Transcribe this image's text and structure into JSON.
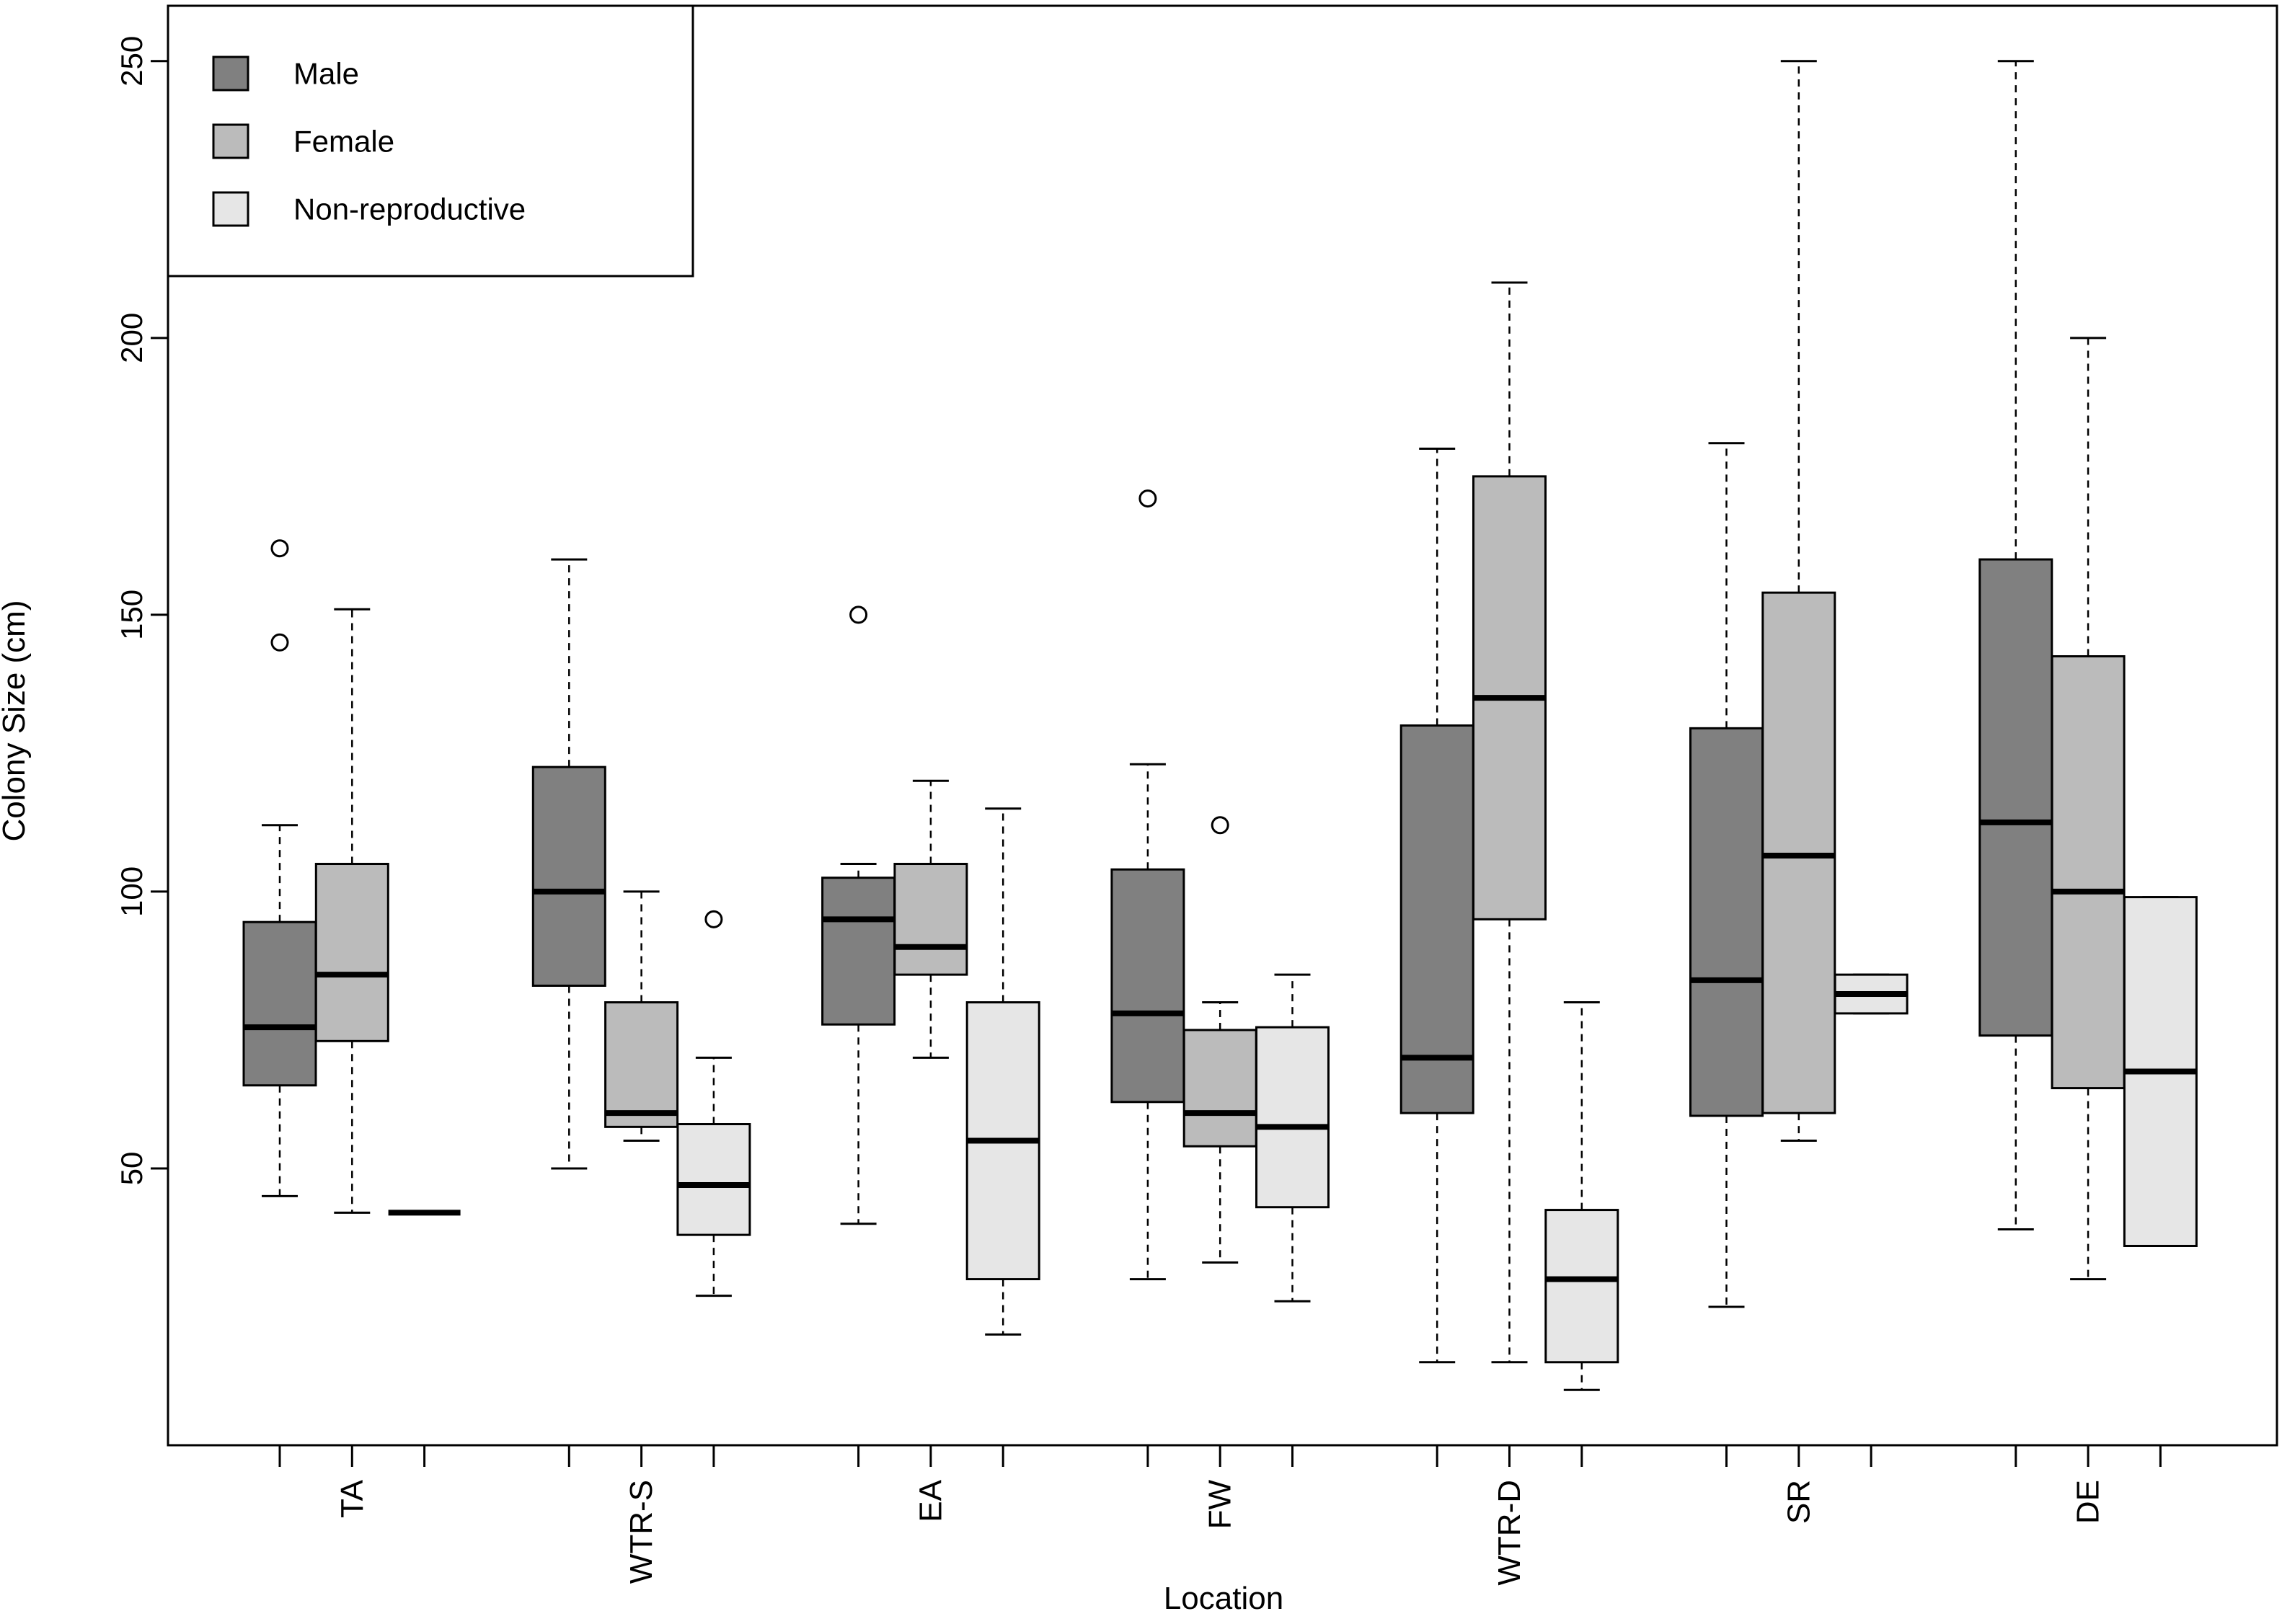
{
  "chart_data": {
    "type": "boxplot",
    "title": "",
    "xlabel": "Location",
    "ylabel": "Colony Size (cm)",
    "ylim": [
      0,
      260
    ],
    "yticks": [
      50,
      100,
      150,
      200,
      250
    ],
    "grid": false,
    "legend_position": "top-left",
    "categories": [
      "TA",
      "WTR-S",
      "EA",
      "FW",
      "WTR-D",
      "SR",
      "DE"
    ],
    "series": [
      {
        "name": "Male",
        "color": "#808080",
        "boxes": [
          {
            "whisker_low": 45,
            "q1": 65,
            "median": 75.5,
            "q3": 94.5,
            "whisker_high": 112,
            "outliers": [
              145,
              162
            ]
          },
          {
            "whisker_low": 50,
            "q1": 83,
            "median": 100,
            "q3": 122.5,
            "whisker_high": 160,
            "outliers": []
          },
          {
            "whisker_low": 40,
            "q1": 76,
            "median": 95,
            "q3": 102.5,
            "whisker_high": 105,
            "outliers": [
              150
            ]
          },
          {
            "whisker_low": 30,
            "q1": 62,
            "median": 78,
            "q3": 104,
            "whisker_high": 123,
            "outliers": [
              171
            ]
          },
          {
            "whisker_low": 15,
            "q1": 60,
            "median": 70,
            "q3": 130,
            "whisker_high": 180,
            "outliers": []
          },
          {
            "whisker_low": 25,
            "q1": 59.5,
            "median": 84,
            "q3": 129.5,
            "whisker_high": 181,
            "outliers": []
          },
          {
            "whisker_low": 39,
            "q1": 74,
            "median": 112.5,
            "q3": 160,
            "whisker_high": 250,
            "outliers": []
          }
        ]
      },
      {
        "name": "Female",
        "color": "#bbbbbb",
        "boxes": [
          {
            "whisker_low": 42,
            "q1": 73,
            "median": 85,
            "q3": 105,
            "whisker_high": 151,
            "outliers": []
          },
          {
            "whisker_low": 55,
            "q1": 57.5,
            "median": 60,
            "q3": 80,
            "whisker_high": 100,
            "outliers": []
          },
          {
            "whisker_low": 70,
            "q1": 85,
            "median": 90,
            "q3": 105,
            "whisker_high": 120,
            "outliers": []
          },
          {
            "whisker_low": 33,
            "q1": 54,
            "median": 60,
            "q3": 75,
            "whisker_high": 80,
            "outliers": [
              112
            ]
          },
          {
            "whisker_low": 15,
            "q1": 95,
            "median": 135,
            "q3": 175,
            "whisker_high": 210,
            "outliers": []
          },
          {
            "whisker_low": 55,
            "q1": 60,
            "median": 106.5,
            "q3": 154,
            "whisker_high": 250,
            "outliers": []
          },
          {
            "whisker_low": 30,
            "q1": 64.5,
            "median": 100,
            "q3": 142.5,
            "whisker_high": 200,
            "outliers": []
          }
        ]
      },
      {
        "name": "Non-reproductive",
        "color": "#e6e6e6",
        "boxes": [
          {
            "whisker_low": 42,
            "q1": 42,
            "median": 42,
            "q3": 42,
            "whisker_high": 42,
            "outliers": []
          },
          {
            "whisker_low": 27,
            "q1": 38,
            "median": 47,
            "q3": 58,
            "whisker_high": 70,
            "outliers": [
              95
            ]
          },
          {
            "whisker_low": 20,
            "q1": 30,
            "median": 55,
            "q3": 80,
            "whisker_high": 115,
            "outliers": []
          },
          {
            "whisker_low": 26,
            "q1": 43,
            "median": 57.5,
            "q3": 75.5,
            "whisker_high": 85,
            "outliers": []
          },
          {
            "whisker_low": 10,
            "q1": 15,
            "median": 30,
            "q3": 42.5,
            "whisker_high": 80,
            "outliers": []
          },
          {
            "whisker_low": 78,
            "q1": 78,
            "median": 81.5,
            "q3": 85,
            "whisker_high": 85,
            "outliers": []
          },
          {
            "whisker_low": 36,
            "q1": 36,
            "median": 67.5,
            "q3": 99,
            "whisker_high": 99,
            "outliers": []
          }
        ]
      }
    ]
  }
}
